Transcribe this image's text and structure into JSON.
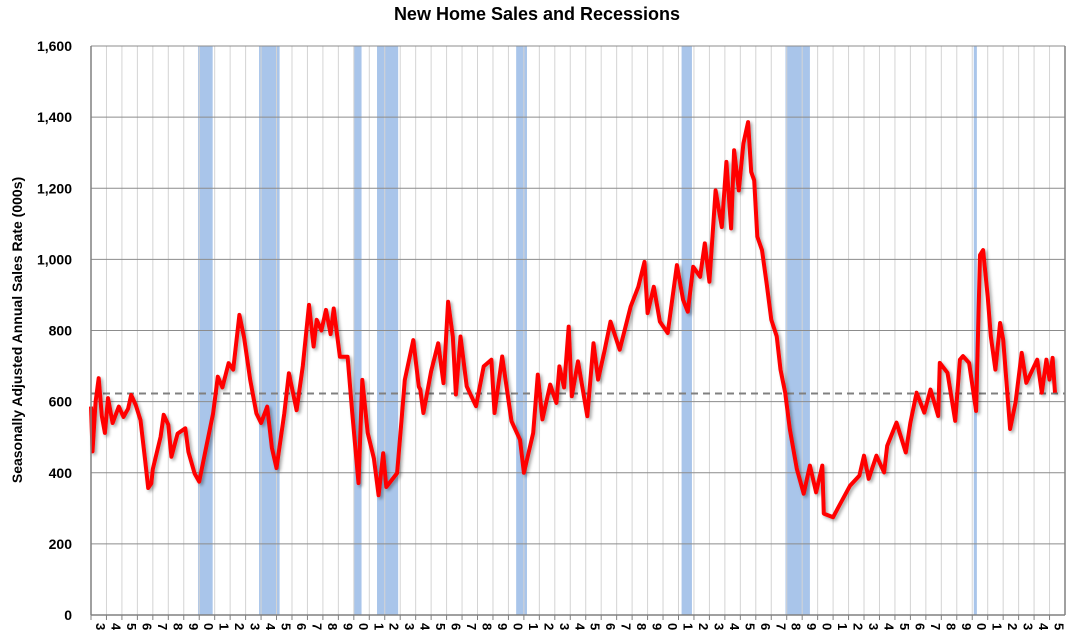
{
  "chart_data": {
    "type": "line",
    "title": "New Home Sales and Recessions",
    "xlabel": "",
    "ylabel": "Seasonally Adjusted Annual Sales Rate (000s)",
    "xlim": [
      1963,
      2026
    ],
    "ylim": [
      0,
      1600
    ],
    "yticks": [
      0,
      200,
      400,
      600,
      800,
      1000,
      1200,
      1400,
      1600
    ],
    "ytick_labels": [
      "0",
      "200",
      "400",
      "600",
      "800",
      "1,000",
      "1,200",
      "1,400",
      "1,600"
    ],
    "xtick_years": [
      1963,
      1964,
      1965,
      1966,
      1967,
      1968,
      1969,
      1970,
      1971,
      1972,
      1973,
      1974,
      1975,
      1976,
      1977,
      1978,
      1979,
      1980,
      1981,
      1982,
      1983,
      1984,
      1985,
      1986,
      1987,
      1988,
      1989,
      1990,
      1991,
      1992,
      1993,
      1994,
      1995,
      1996,
      1997,
      1998,
      1999,
      2000,
      2001,
      2002,
      2003,
      2004,
      2005,
      2006,
      2007,
      2008,
      2009,
      2010,
      2011,
      2012,
      2013,
      2014,
      2015,
      2016,
      2017,
      2018,
      2019,
      2020,
      2021,
      2022,
      2023,
      2024,
      2025
    ],
    "xtick_label_format": "last digit of year",
    "grid": {
      "horizontal": true,
      "vertical": true
    },
    "colors": {
      "series": "#ff0000",
      "recession": "#a9c5ea",
      "reference": "#808080",
      "hgrid": "#8c8c8c",
      "vgrid": "#d4d4d4"
    },
    "reference_line": {
      "value": 623,
      "style": "dashed"
    },
    "recessions": [
      [
        1969.92,
        1970.87
      ],
      [
        1973.87,
        1975.2
      ],
      [
        1980.0,
        1980.5
      ],
      [
        1981.5,
        1982.87
      ],
      [
        1990.5,
        1991.2
      ],
      [
        2001.2,
        2001.87
      ],
      [
        2007.92,
        2009.5
      ],
      [
        2020.1,
        2020.3
      ]
    ],
    "series": [
      {
        "points": [
          [
            1963.0,
            586
          ],
          [
            1963.1,
            460
          ],
          [
            1963.3,
            600
          ],
          [
            1963.5,
            666
          ],
          [
            1963.7,
            560
          ],
          [
            1963.9,
            512
          ],
          [
            1964.1,
            610
          ],
          [
            1964.4,
            540
          ],
          [
            1964.8,
            586
          ],
          [
            1965.1,
            557
          ],
          [
            1965.4,
            580
          ],
          [
            1965.6,
            619
          ],
          [
            1965.9,
            590
          ],
          [
            1966.2,
            548
          ],
          [
            1966.5,
            436
          ],
          [
            1966.7,
            357
          ],
          [
            1966.9,
            370
          ],
          [
            1967.0,
            410
          ],
          [
            1967.5,
            501
          ],
          [
            1967.7,
            563
          ],
          [
            1968.0,
            535
          ],
          [
            1968.2,
            445
          ],
          [
            1968.6,
            510
          ],
          [
            1969.1,
            525
          ],
          [
            1969.3,
            459
          ],
          [
            1969.7,
            398
          ],
          [
            1970.0,
            375
          ],
          [
            1970.5,
            483
          ],
          [
            1970.9,
            567
          ],
          [
            1971.2,
            670
          ],
          [
            1971.5,
            640
          ],
          [
            1971.9,
            708
          ],
          [
            1972.2,
            690
          ],
          [
            1972.6,
            844
          ],
          [
            1972.9,
            780
          ],
          [
            1973.3,
            661
          ],
          [
            1973.7,
            567
          ],
          [
            1974.0,
            540
          ],
          [
            1974.4,
            586
          ],
          [
            1974.7,
            470
          ],
          [
            1975.0,
            413
          ],
          [
            1975.5,
            567
          ],
          [
            1975.8,
            680
          ],
          [
            1976.3,
            576
          ],
          [
            1976.7,
            700
          ],
          [
            1977.1,
            872
          ],
          [
            1977.4,
            755
          ],
          [
            1977.6,
            830
          ],
          [
            1977.9,
            800
          ],
          [
            1978.2,
            858
          ],
          [
            1978.5,
            790
          ],
          [
            1978.7,
            862
          ],
          [
            1979.1,
            726
          ],
          [
            1979.6,
            726
          ],
          [
            1979.9,
            567
          ],
          [
            1980.3,
            371
          ],
          [
            1980.55,
            661
          ],
          [
            1980.9,
            512
          ],
          [
            1981.3,
            440
          ],
          [
            1981.6,
            337
          ],
          [
            1981.9,
            455
          ],
          [
            1982.1,
            360
          ],
          [
            1982.8,
            399
          ],
          [
            1983.1,
            557
          ],
          [
            1983.3,
            661
          ],
          [
            1983.85,
            773
          ],
          [
            1984.2,
            642
          ],
          [
            1984.3,
            634
          ],
          [
            1984.5,
            568
          ],
          [
            1985.0,
            685
          ],
          [
            1985.46,
            764
          ],
          [
            1985.8,
            652
          ],
          [
            1986.1,
            881
          ],
          [
            1986.4,
            783
          ],
          [
            1986.6,
            620
          ],
          [
            1986.9,
            783
          ],
          [
            1987.3,
            643
          ],
          [
            1987.9,
            587
          ],
          [
            1988.4,
            699
          ],
          [
            1988.9,
            718
          ],
          [
            1989.1,
            568
          ],
          [
            1989.6,
            727
          ],
          [
            1990.2,
            545
          ],
          [
            1990.75,
            493
          ],
          [
            1991.0,
            400
          ],
          [
            1991.6,
            512
          ],
          [
            1991.9,
            676
          ],
          [
            1992.2,
            550
          ],
          [
            1992.7,
            648
          ],
          [
            1993.1,
            596
          ],
          [
            1993.3,
            699
          ],
          [
            1993.6,
            640
          ],
          [
            1993.9,
            811
          ],
          [
            1994.1,
            615
          ],
          [
            1994.5,
            713
          ],
          [
            1995.1,
            559
          ],
          [
            1995.5,
            764
          ],
          [
            1995.8,
            662
          ],
          [
            1996.2,
            740
          ],
          [
            1996.6,
            825
          ],
          [
            1997.2,
            746
          ],
          [
            1997.9,
            867
          ],
          [
            1998.4,
            923
          ],
          [
            1998.8,
            993
          ],
          [
            1999.0,
            849
          ],
          [
            1999.4,
            923
          ],
          [
            1999.8,
            825
          ],
          [
            2000.3,
            793
          ],
          [
            2000.9,
            984
          ],
          [
            2001.3,
            886
          ],
          [
            2001.6,
            853
          ],
          [
            2001.95,
            979
          ],
          [
            2002.4,
            951
          ],
          [
            2002.7,
            1045
          ],
          [
            2003.0,
            937
          ],
          [
            2003.4,
            1194
          ],
          [
            2003.8,
            1091
          ],
          [
            2004.1,
            1274
          ],
          [
            2004.4,
            1087
          ],
          [
            2004.6,
            1307
          ],
          [
            2004.9,
            1194
          ],
          [
            2005.2,
            1326
          ],
          [
            2005.5,
            1386
          ],
          [
            2005.7,
            1246
          ],
          [
            2005.9,
            1222
          ],
          [
            2006.1,
            1064
          ],
          [
            2006.4,
            1026
          ],
          [
            2006.7,
            933
          ],
          [
            2007.0,
            830
          ],
          [
            2007.35,
            784
          ],
          [
            2007.6,
            690
          ],
          [
            2007.9,
            625
          ],
          [
            2008.2,
            523
          ],
          [
            2008.65,
            411
          ],
          [
            2009.1,
            341
          ],
          [
            2009.5,
            420
          ],
          [
            2009.9,
            345
          ],
          [
            2010.3,
            420
          ],
          [
            2010.4,
            285
          ],
          [
            2011.0,
            275
          ],
          [
            2011.4,
            308
          ],
          [
            2012.1,
            364
          ],
          [
            2012.7,
            392
          ],
          [
            2013.0,
            448
          ],
          [
            2013.3,
            383
          ],
          [
            2013.8,
            448
          ],
          [
            2014.3,
            401
          ],
          [
            2014.5,
            476
          ],
          [
            2015.1,
            541
          ],
          [
            2015.7,
            457
          ],
          [
            2016.0,
            541
          ],
          [
            2016.4,
            625
          ],
          [
            2016.9,
            569
          ],
          [
            2017.3,
            634
          ],
          [
            2017.8,
            560
          ],
          [
            2017.9,
            709
          ],
          [
            2018.4,
            681
          ],
          [
            2018.9,
            546
          ],
          [
            2019.2,
            718
          ],
          [
            2019.4,
            728
          ],
          [
            2019.8,
            709
          ],
          [
            2020.25,
            574
          ],
          [
            2020.5,
            1012
          ],
          [
            2020.7,
            1026
          ],
          [
            2021.0,
            896
          ],
          [
            2021.2,
            784
          ],
          [
            2021.5,
            690
          ],
          [
            2021.8,
            821
          ],
          [
            2022.0,
            774
          ],
          [
            2022.45,
            523
          ],
          [
            2022.8,
            597
          ],
          [
            2023.2,
            737
          ],
          [
            2023.5,
            653
          ],
          [
            2023.8,
            681
          ],
          [
            2024.2,
            718
          ],
          [
            2024.5,
            625
          ],
          [
            2024.8,
            718
          ],
          [
            2025.0,
            662
          ],
          [
            2025.2,
            723
          ],
          [
            2025.35,
            625
          ]
        ]
      }
    ]
  }
}
